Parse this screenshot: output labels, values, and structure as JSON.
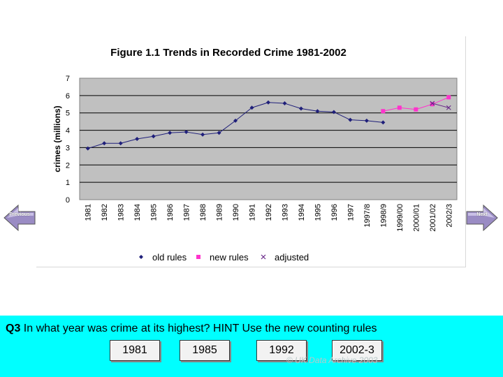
{
  "chart_data": {
    "type": "line",
    "title": "Figure 1.1 Trends in Recorded Crime 1981-2002",
    "ylabel": "crimes (millions)",
    "xlabel": "",
    "ylim": [
      0,
      7
    ],
    "yticks": [
      "0",
      "1",
      "2",
      "3",
      "4",
      "5",
      "6",
      "7"
    ],
    "categories": [
      "1981",
      "1982",
      "1983",
      "1984",
      "1985",
      "1986",
      "1987",
      "1988",
      "1989",
      "1990",
      "1991",
      "1992",
      "1993",
      "1994",
      "1995",
      "1996",
      "1997",
      "1997/8",
      "1998/9",
      "1999/00",
      "2000/01",
      "2001/02",
      "2002/3"
    ],
    "grid": "horizontal",
    "legend_position": "bottom",
    "series": [
      {
        "name": "old rules",
        "color": "#1f1f7a",
        "marker": "diamond",
        "values": [
          2.95,
          3.25,
          3.25,
          3.5,
          3.65,
          3.85,
          3.9,
          3.75,
          3.85,
          4.55,
          5.3,
          5.6,
          5.55,
          5.25,
          5.1,
          5.05,
          4.6,
          4.55,
          4.45,
          null,
          null,
          null,
          null
        ]
      },
      {
        "name": "new rules",
        "color": "#ff33cc",
        "marker": "square",
        "values": [
          null,
          null,
          null,
          null,
          null,
          null,
          null,
          null,
          null,
          null,
          null,
          null,
          null,
          null,
          null,
          null,
          null,
          null,
          5.1,
          5.3,
          5.2,
          5.5,
          5.9
        ]
      },
      {
        "name": "adjusted",
        "color": "#6a2a8a",
        "marker": "x",
        "values": [
          null,
          null,
          null,
          null,
          null,
          null,
          null,
          null,
          null,
          null,
          null,
          null,
          null,
          null,
          null,
          null,
          null,
          null,
          null,
          null,
          null,
          5.55,
          5.3
        ]
      }
    ]
  },
  "nav": {
    "prev_label": "Previous",
    "next_label": "Next",
    "arrow_color": "#9a8cc4"
  },
  "question": {
    "number": "Q3",
    "text": " In what year was crime at its highest? HINT Use the new counting rules",
    "answers": [
      "1981",
      "1985",
      "1992",
      "2002-3"
    ],
    "panel_color": "#00ffff"
  },
  "copyright": "© UK Data Archive 2003"
}
